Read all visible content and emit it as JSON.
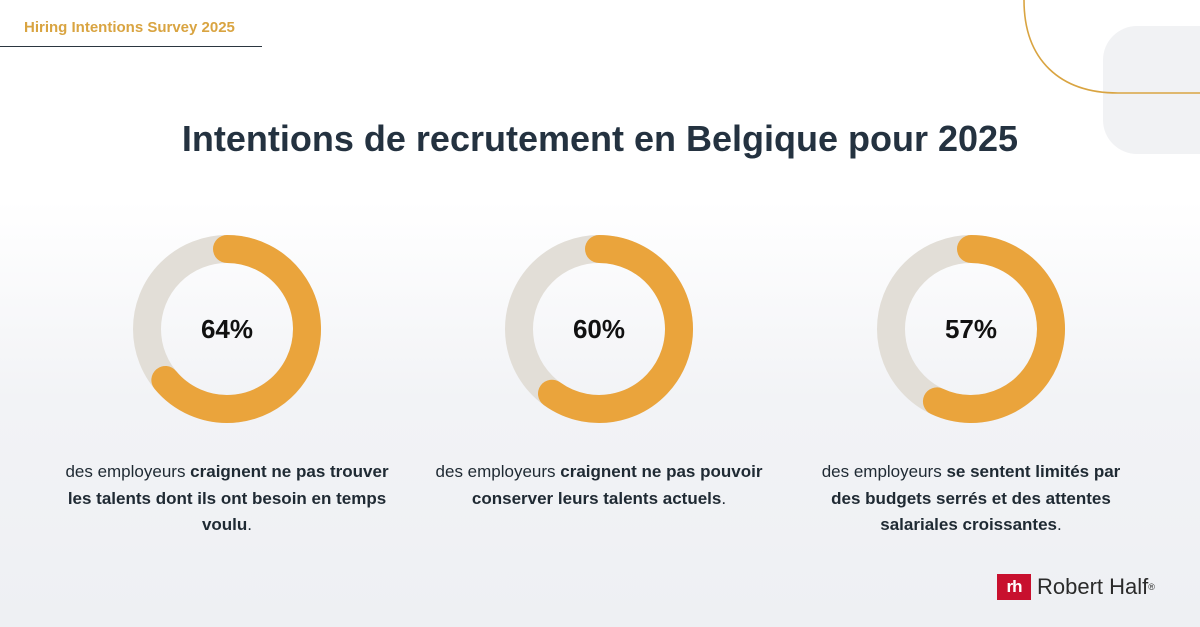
{
  "survey_tag": "Hiring Intentions Survey 2025",
  "title": "Intentions de recrutement en Belgique pour 2025",
  "colors": {
    "accent": "#eaa43c",
    "track": "#e2ded7",
    "tag": "#d9a441",
    "brand": "#c8102e"
  },
  "chart_data": {
    "type": "donut",
    "series": [
      {
        "value": 64,
        "label": "64%"
      },
      {
        "value": 60,
        "label": "60%"
      },
      {
        "value": 57,
        "label": "57%"
      }
    ]
  },
  "captions": [
    {
      "plain": "des employeurs ",
      "bold": "craignent ne pas trouver les talents dont ils ont besoin en temps voulu",
      "end": "."
    },
    {
      "plain": "des employeurs ",
      "bold": "craignent ne pas pouvoir conserver leurs talents actuels",
      "end": "."
    },
    {
      "plain": "des employeurs ",
      "bold": "se sentent limités par des budgets serrés et des attentes salariales croissantes",
      "end": "."
    }
  ],
  "logo": {
    "mark": "rh",
    "name": "Robert Half",
    "reg": "®"
  }
}
